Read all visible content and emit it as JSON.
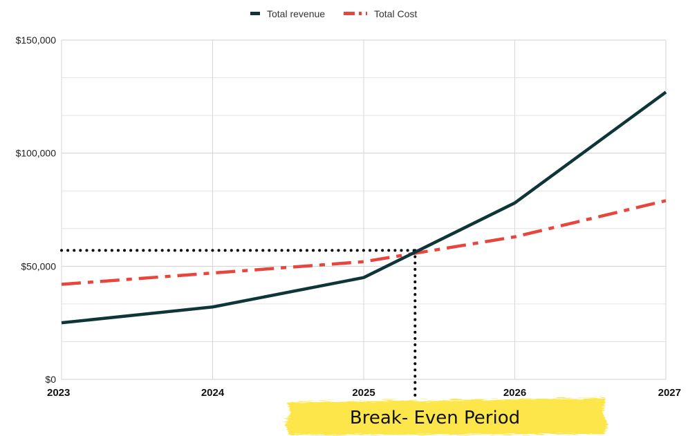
{
  "chart_data": {
    "type": "line",
    "title": "",
    "xlabel": "",
    "ylabel": "",
    "x": [
      "2023",
      "2024",
      "2025",
      "2026",
      "2027"
    ],
    "ylim": [
      0,
      150000
    ],
    "y_ticks": [
      "$0",
      "$50,000",
      "$100,000",
      "$150,000"
    ],
    "y_tick_values": [
      0,
      50000,
      100000,
      150000
    ],
    "grid": true,
    "legend_position": "top-center",
    "series": [
      {
        "name": "Total revenue",
        "values": [
          25000,
          32000,
          45000,
          78000,
          127000
        ],
        "color": "#0e3538",
        "style": "solid"
      },
      {
        "name": "Total Cost",
        "values": [
          42000,
          47000,
          52000,
          63000,
          79000
        ],
        "color": "#e8453c",
        "style": "dash-dot"
      }
    ],
    "break_even": {
      "x": 2025.34,
      "y": 57000
    },
    "annotation": {
      "text": "Break- Even Period",
      "highlight_color": "#fde648"
    }
  }
}
